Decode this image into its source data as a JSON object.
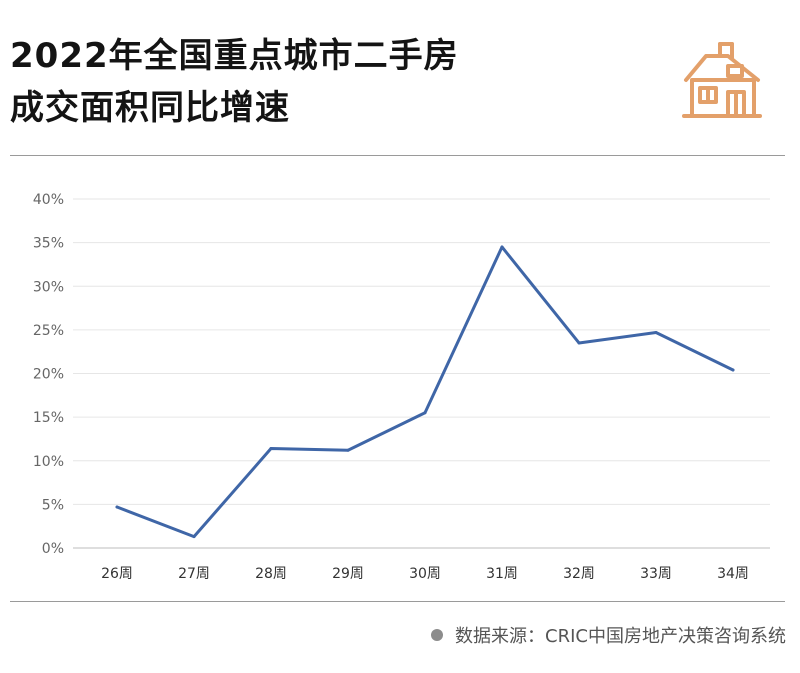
{
  "title_lines": [
    "2022年全国重点城市二手房",
    "成交面积同比增速"
  ],
  "source_text": "数据来源：CRIC中国房地产决策咨询系统",
  "colors": {
    "line": "#3f66a7",
    "icon": "#e3a06a",
    "grid": "#e6e6e6",
    "rule": "#9a9a9a"
  },
  "icons": {
    "house": "house-icon",
    "source": "dot-icon"
  },
  "chart_data": {
    "type": "line",
    "categories": [
      "26周",
      "27周",
      "28周",
      "29周",
      "30周",
      "31周",
      "32周",
      "33周",
      "34周"
    ],
    "series": [
      {
        "values": [
          4.7,
          1.3,
          11.4,
          11.2,
          15.5,
          34.5,
          23.5,
          24.7,
          20.4
        ]
      }
    ],
    "y_ticks": [
      "0%",
      "5%",
      "10%",
      "15%",
      "20%",
      "25%",
      "30%",
      "35%",
      "40%"
    ],
    "ylim": [
      0,
      40
    ],
    "grid": "horizontal",
    "legend": "none"
  }
}
